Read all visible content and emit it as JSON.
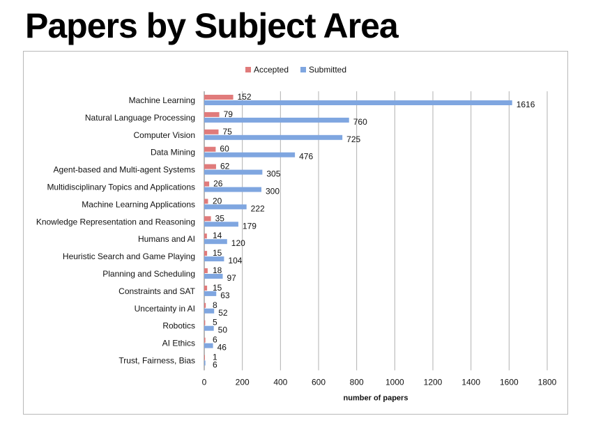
{
  "page": {
    "title": "Papers by Subject Area"
  },
  "colors": {
    "accepted": "#e07b7b",
    "submitted": "#7fa6e0",
    "grid": "#b0b0b0",
    "axis": "#888888"
  },
  "chart_data": {
    "type": "bar",
    "orientation": "horizontal",
    "title": "Papers by Subject Area",
    "xlabel": "number of papers",
    "ylabel": "",
    "xlim": [
      0,
      1800
    ],
    "xticks": [
      0,
      200,
      400,
      600,
      800,
      1000,
      1200,
      1400,
      1600,
      1800
    ],
    "grid": "vertical",
    "legend": "top-center",
    "categories": [
      "Machine Learning",
      "Natural Language Processing",
      "Computer Vision",
      "Data Mining",
      "Agent-based and Multi-agent Systems",
      "Multidisciplinary Topics and Applications",
      "Machine Learning Applications",
      "Knowledge Representation and Reasoning",
      "Humans and AI",
      "Heuristic Search and Game Playing",
      "Planning and Scheduling",
      "Constraints and SAT",
      "Uncertainty in AI",
      "Robotics",
      "AI Ethics",
      "Trust, Fairness, Bias"
    ],
    "series": [
      {
        "name": "Accepted",
        "values": [
          152,
          79,
          75,
          60,
          62,
          26,
          20,
          35,
          14,
          15,
          18,
          15,
          8,
          5,
          6,
          1
        ]
      },
      {
        "name": "Submitted",
        "values": [
          1616,
          760,
          725,
          476,
          305,
          300,
          222,
          179,
          120,
          104,
          97,
          63,
          52,
          50,
          46,
          6
        ]
      }
    ]
  }
}
